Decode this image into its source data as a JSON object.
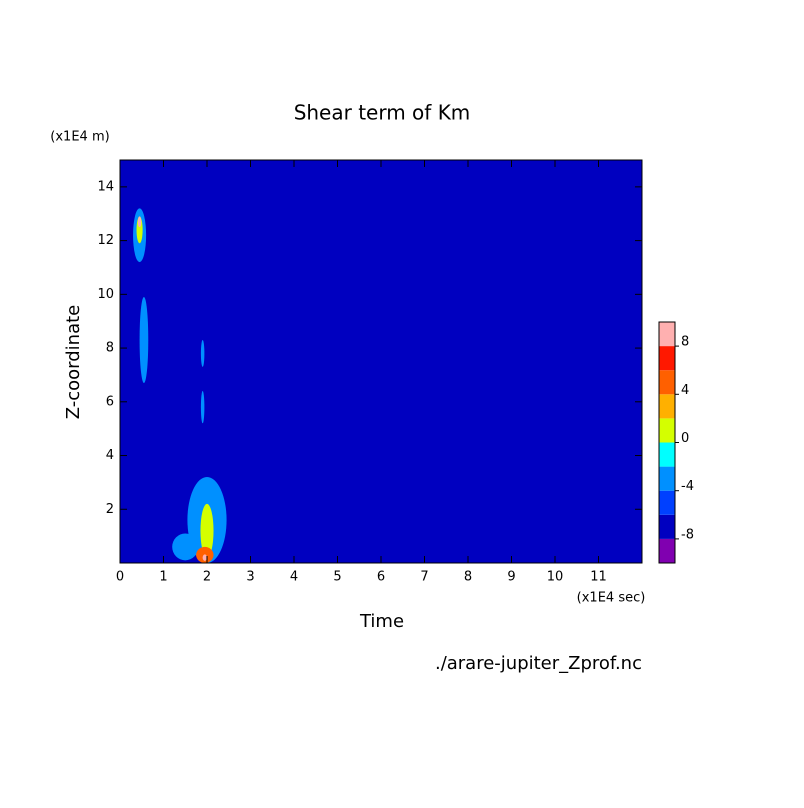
{
  "chart_data": {
    "type": "contour",
    "title": "Shear term of Km",
    "x_unit": "(x1E4 sec)",
    "y_unit": "(x1E4 m)",
    "xlabel": "Time",
    "ylabel": "Z-coordinate",
    "footer": "./arare-jupiter_Zprof.nc",
    "xlim": [
      0,
      12
    ],
    "xticks": [
      0,
      1,
      2,
      3,
      4,
      5,
      6,
      7,
      8,
      9,
      10,
      11
    ],
    "ylim": [
      0,
      15
    ],
    "yticks": [
      2,
      4,
      6,
      8,
      10,
      12,
      14
    ],
    "levels": [
      -10,
      -8,
      -6,
      -4,
      -2,
      0,
      2,
      4,
      6,
      8,
      10
    ],
    "colors": [
      "#8000b0",
      "#0000c0",
      "#0040ff",
      "#0090ff",
      "#00ffff",
      "#d4ff00",
      "#ffb000",
      "#ff6000",
      "#ff1800",
      "#ffb0b0"
    ],
    "colorbar_ticks": [
      -8,
      -4,
      0,
      4,
      8
    ],
    "background_level": 1,
    "patches": [
      {
        "x": 0.55,
        "y": 8.3,
        "rx": 0.1,
        "ry": 1.6,
        "level": 3
      },
      {
        "x": 0.45,
        "y": 12.2,
        "rx": 0.15,
        "ry": 1.0,
        "level": 3
      },
      {
        "x": 0.45,
        "y": 12.4,
        "rx": 0.07,
        "ry": 0.5,
        "level": 5
      },
      {
        "x": 0.45,
        "y": 12.7,
        "rx": 0.04,
        "ry": 0.2,
        "level": 9
      },
      {
        "x": 1.9,
        "y": 7.8,
        "rx": 0.04,
        "ry": 0.5,
        "level": 3
      },
      {
        "x": 1.9,
        "y": 5.8,
        "rx": 0.04,
        "ry": 0.6,
        "level": 3
      },
      {
        "x": 2.0,
        "y": 1.6,
        "rx": 0.45,
        "ry": 1.6,
        "level": 3
      },
      {
        "x": 1.5,
        "y": 0.6,
        "rx": 0.3,
        "ry": 0.5,
        "level": 3
      },
      {
        "x": 2.0,
        "y": 1.2,
        "rx": 0.15,
        "ry": 1.0,
        "level": 5
      },
      {
        "x": 1.95,
        "y": 0.3,
        "rx": 0.2,
        "ry": 0.3,
        "level": 7
      },
      {
        "x": 1.95,
        "y": 0.2,
        "rx": 0.05,
        "ry": 0.12,
        "level": 9
      }
    ]
  }
}
